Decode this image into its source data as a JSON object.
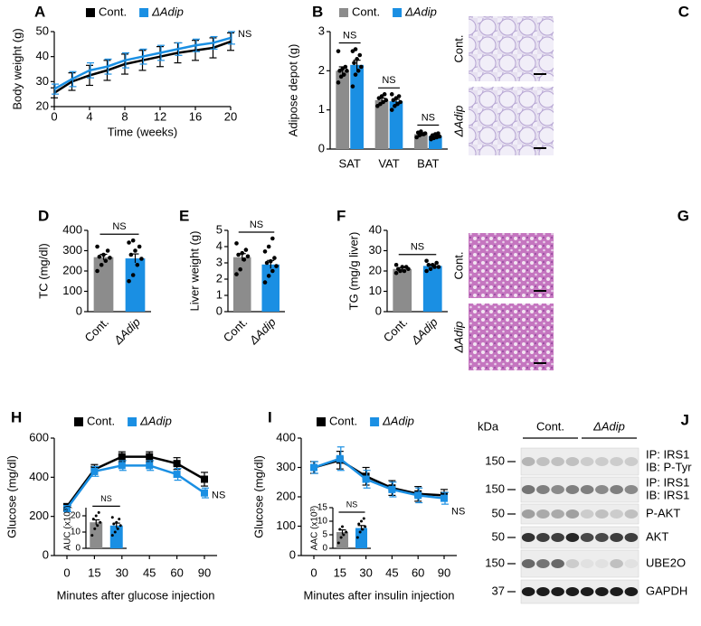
{
  "chart_data": [
    {
      "panel": "A",
      "type": "line",
      "ylabel": "Body weight (g)",
      "xlabel": "Time (weeks)",
      "x": [
        0,
        2,
        4,
        6,
        8,
        10,
        12,
        14,
        16,
        18,
        20
      ],
      "xlim": [
        0,
        20
      ],
      "xticks": [
        0,
        4,
        8,
        12,
        16,
        20
      ],
      "ylim": [
        20,
        50
      ],
      "yticks": [
        20,
        30,
        40,
        50
      ],
      "annotation": "NS",
      "series": [
        {
          "name": "Cont.",
          "color": "#000000",
          "values": [
            25.5,
            30,
            32.5,
            34.5,
            37,
            38.5,
            40,
            41.5,
            42.5,
            43.5,
            46
          ],
          "errors": [
            2,
            3.5,
            4,
            4,
            4,
            4,
            4,
            4,
            4,
            4,
            3.5
          ]
        },
        {
          "name": "ΔAdip",
          "color": "#1a8fe3",
          "values": [
            27,
            31,
            34.5,
            36,
            38.5,
            40,
            41.5,
            43,
            44.5,
            45.5,
            47.5
          ],
          "errors": [
            2,
            3,
            3,
            3,
            3,
            3,
            3,
            2.5,
            2.5,
            2.5,
            2.5
          ]
        }
      ]
    },
    {
      "panel": "B",
      "type": "bar",
      "ylabel": "Adipose depot (g)",
      "categories": [
        "SAT",
        "VAT",
        "BAT"
      ],
      "ylim": [
        0,
        3
      ],
      "yticks": [
        0,
        1,
        2,
        3
      ],
      "annotations": [
        "NS",
        "NS",
        "NS"
      ],
      "series": [
        {
          "name": "Cont.",
          "color": "#8c8c8c",
          "values": [
            2.0,
            1.25,
            0.38
          ],
          "errors": [
            0.1,
            0.05,
            0.02
          ],
          "points": [
            [
              1.7,
              1.85,
              1.9,
              2.0,
              2.0,
              2.05,
              2.1,
              2.5
            ],
            [
              1.1,
              1.15,
              1.2,
              1.25,
              1.3,
              1.35,
              1.4
            ],
            [
              0.3,
              0.35,
              0.38,
              0.4,
              0.42,
              0.45,
              0.38
            ]
          ]
        },
        {
          "name": "ΔAdip",
          "color": "#1a8fe3",
          "values": [
            2.15,
            1.22,
            0.33
          ],
          "errors": [
            0.12,
            0.05,
            0.02
          ],
          "points": [
            [
              1.6,
              1.9,
              2.0,
              2.1,
              2.2,
              2.3,
              2.4,
              2.5,
              2.55
            ],
            [
              1.0,
              1.1,
              1.15,
              1.2,
              1.25,
              1.3,
              1.35,
              1.4
            ],
            [
              0.25,
              0.28,
              0.3,
              0.32,
              0.35,
              0.38,
              0.4,
              0.3
            ]
          ]
        }
      ]
    },
    {
      "panel": "D",
      "type": "bar",
      "ylabel": "TC (mg/dl)",
      "categories": [
        "Cont.",
        "ΔAdip"
      ],
      "values": [
        268,
        262
      ],
      "colors": [
        "#8c8c8c",
        "#1a8fe3"
      ],
      "errors": [
        14,
        22
      ],
      "ylim": [
        0,
        400
      ],
      "yticks": [
        0,
        100,
        200,
        300,
        400
      ],
      "annotation": "NS",
      "points": [
        [
          200,
          230,
          250,
          265,
          270,
          280,
          300,
          320
        ],
        [
          150,
          180,
          230,
          260,
          280,
          300,
          320,
          340,
          350
        ]
      ]
    },
    {
      "panel": "E",
      "type": "bar",
      "ylabel": "Liver weight (g)",
      "categories": [
        "Cont.",
        "ΔAdip"
      ],
      "values": [
        3.35,
        2.9
      ],
      "colors": [
        "#8c8c8c",
        "#1a8fe3"
      ],
      "errors": [
        0.22,
        0.25
      ],
      "ylim": [
        0,
        5
      ],
      "yticks": [
        0,
        1,
        2,
        3,
        4,
        5
      ],
      "annotation": "NS",
      "points": [
        [
          2.3,
          2.6,
          3.2,
          3.4,
          3.5,
          3.6,
          3.8,
          4.2
        ],
        [
          1.8,
          2.2,
          2.5,
          2.8,
          3.0,
          3.1,
          3.3,
          3.7,
          4.0,
          4.5
        ]
      ]
    },
    {
      "panel": "F",
      "type": "bar",
      "ylabel": "TG (mg/g liver)",
      "categories": [
        "Cont.",
        "ΔAdip"
      ],
      "values": [
        21,
        22.5
      ],
      "colors": [
        "#8c8c8c",
        "#1a8fe3"
      ],
      "errors": [
        0.6,
        0.6
      ],
      "ylim": [
        0,
        40
      ],
      "yticks": [
        0,
        10,
        20,
        30,
        40
      ],
      "annotation": "NS",
      "points": [
        [
          19,
          20,
          20,
          21,
          21,
          22,
          22,
          23
        ],
        [
          20,
          21,
          22,
          22,
          23,
          23,
          24,
          25
        ]
      ]
    },
    {
      "panel": "H",
      "type": "line",
      "ylabel": "Glucose (mg/dl)",
      "xlabel": "Minutes after glucose injection",
      "categories": [
        "0",
        "15",
        "30",
        "45",
        "60",
        "90"
      ],
      "ylim": [
        0,
        600
      ],
      "yticks": [
        0,
        200,
        400,
        600
      ],
      "annotation": "NS",
      "series": [
        {
          "name": "Cont.",
          "color": "#000000",
          "values": [
            250,
            440,
            505,
            505,
            470,
            390
          ],
          "errors": [
            15,
            25,
            25,
            25,
            30,
            35
          ]
        },
        {
          "name": "ΔAdip",
          "color": "#1a8fe3",
          "values": [
            240,
            430,
            460,
            460,
            415,
            320
          ],
          "errors": [
            15,
            25,
            25,
            25,
            30,
            25
          ]
        }
      ],
      "inset": {
        "type": "bar",
        "ylabel": "AUC (x10³)",
        "values": [
          16,
          14
        ],
        "colors": [
          "#8c8c8c",
          "#1a8fe3"
        ],
        "errors": [
          1.5,
          1.5
        ],
        "ylim": [
          0,
          25
        ],
        "yticks": [
          0,
          10,
          20
        ],
        "annotation": "NS",
        "points": [
          [
            8,
            12,
            14,
            16,
            18,
            20,
            22
          ],
          [
            8,
            10,
            12,
            14,
            15,
            16,
            18,
            19
          ]
        ]
      }
    },
    {
      "panel": "I",
      "type": "line",
      "ylabel": "Glucose (mg/dl)",
      "xlabel": "Minutes after insulin injection",
      "categories": [
        "0",
        "15",
        "30",
        "45",
        "60",
        "90"
      ],
      "ylim": [
        0,
        400
      ],
      "yticks": [
        0,
        100,
        200,
        300,
        400
      ],
      "annotation": "NS",
      "series": [
        {
          "name": "Cont.",
          "color": "#000000",
          "values": [
            300,
            325,
            270,
            230,
            210,
            205
          ],
          "errors": [
            20,
            30,
            30,
            25,
            25,
            20
          ]
        },
        {
          "name": "ΔAdip",
          "color": "#1a8fe3",
          "values": [
            300,
            330,
            260,
            225,
            205,
            195
          ],
          "errors": [
            20,
            40,
            30,
            25,
            25,
            20
          ]
        }
      ],
      "inset": {
        "type": "bar",
        "ylabel": "AAC (x10³)",
        "values": [
          6,
          7.5
        ],
        "colors": [
          "#8c8c8c",
          "#1a8fe3"
        ],
        "errors": [
          0.8,
          0.9
        ],
        "ylim": [
          0,
          15
        ],
        "yticks": [
          0,
          5,
          10,
          15
        ],
        "annotation": "NS",
        "points": [
          [
            2,
            4,
            5,
            6,
            7,
            8
          ],
          [
            4,
            6,
            7,
            8,
            9,
            10,
            11
          ]
        ]
      }
    }
  ],
  "images": [
    {
      "panel": "C",
      "labels": [
        "Cont.",
        "ΔAdip"
      ]
    },
    {
      "panel": "G",
      "labels": [
        "Cont.",
        "ΔAdip"
      ]
    }
  ],
  "western_blot": {
    "panel": "J",
    "unit_label": "kDa",
    "groups": [
      "Cont.",
      "ΔAdip"
    ],
    "rows": [
      {
        "marker": "150",
        "labels": [
          "IP: IRS1",
          "IB: P-Tyr"
        ]
      },
      {
        "marker": "150",
        "labels": [
          "IP: IRS1",
          "IB: IRS1"
        ]
      },
      {
        "marker": "50",
        "labels": [
          "P-AKT"
        ]
      },
      {
        "marker": "50",
        "labels": [
          "AKT"
        ]
      },
      {
        "marker": "150",
        "labels": [
          "UBE2O"
        ]
      },
      {
        "marker": "37",
        "labels": [
          "GAPDH"
        ]
      }
    ]
  }
}
